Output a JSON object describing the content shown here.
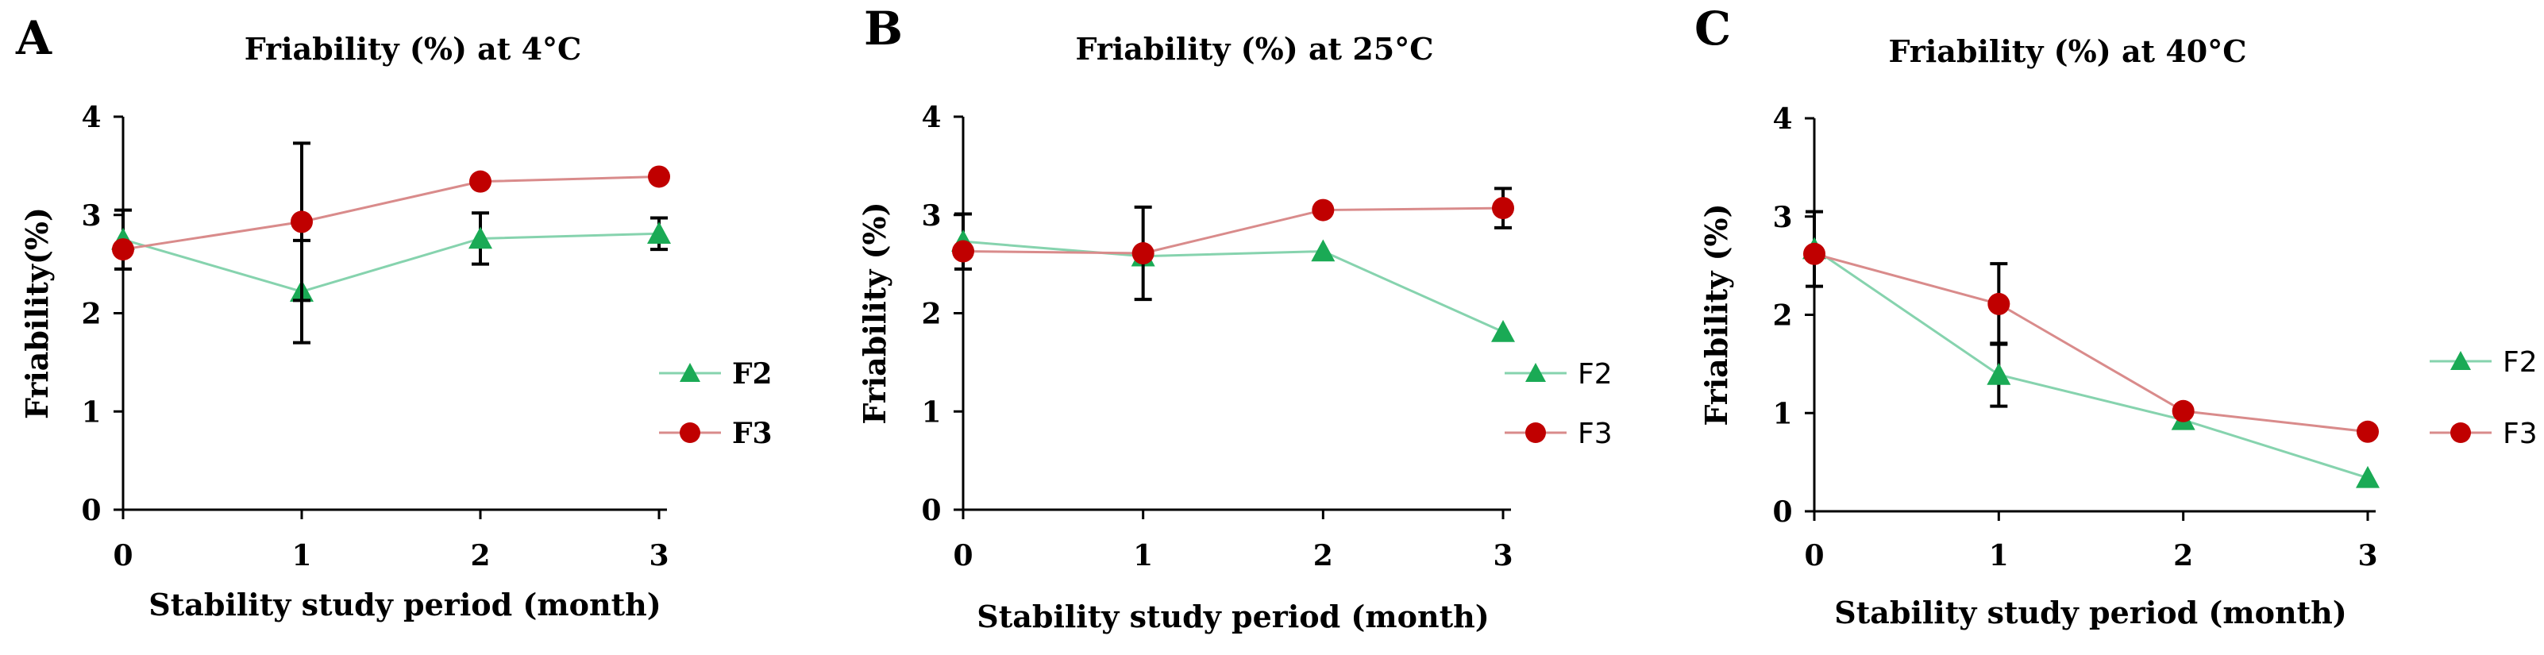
{
  "chart_data": [
    {
      "type": "line",
      "panel": "A",
      "title": "Friability (%) at 4°C",
      "xlabel": "Stability study period (month)",
      "ylabel": "Friability(%)",
      "x": [
        0,
        1,
        2,
        3
      ],
      "xticks": [
        "0",
        "1",
        "2",
        "3"
      ],
      "yticks": [
        "0",
        "1",
        "2",
        "3",
        "4"
      ],
      "ylim": [
        0,
        4
      ],
      "legend": "right",
      "grid": false,
      "series": [
        {
          "name": "F2",
          "marker": "triangle",
          "color": "#1aaa55",
          "line_color": "#86d3ae",
          "values": [
            2.75,
            2.22,
            2.76,
            2.81
          ],
          "errors": [
            0.3,
            0.52,
            0.26,
            0.16
          ]
        },
        {
          "name": "F3",
          "marker": "circle",
          "color": "#c00000",
          "line_color": "#d98b8b",
          "values": [
            2.65,
            2.93,
            3.34,
            3.39
          ],
          "errors": [
            0,
            0.8,
            0,
            0
          ]
        }
      ]
    },
    {
      "type": "line",
      "panel": "B",
      "title": "Friability (%) at 25°C",
      "xlabel": "Stability study period (month)",
      "ylabel": "Friability (%)",
      "x": [
        0,
        1,
        2,
        3
      ],
      "xticks": [
        "0",
        "1",
        "2",
        "3"
      ],
      "yticks": [
        "0",
        "1",
        "2",
        "3",
        "4"
      ],
      "ylim": [
        0,
        4
      ],
      "legend": "right",
      "grid": false,
      "series": [
        {
          "name": "F2",
          "marker": "triangle",
          "color": "#1aaa55",
          "line_color": "#86d3ae",
          "values": [
            2.73,
            2.58,
            2.63,
            1.81
          ],
          "errors": [
            0.28,
            0,
            0,
            0
          ]
        },
        {
          "name": "F3",
          "marker": "circle",
          "color": "#c00000",
          "line_color": "#d98b8b",
          "values": [
            2.63,
            2.61,
            3.05,
            3.07
          ],
          "errors": [
            0,
            0.47,
            0,
            0.2
          ]
        }
      ]
    },
    {
      "type": "line",
      "panel": "C",
      "title": "Friability (%) at 40°C",
      "xlabel": "Stability study period (month)",
      "ylabel": "Friability (%)",
      "x": [
        0,
        1,
        2,
        3
      ],
      "xticks": [
        "0",
        "1",
        "2",
        "3"
      ],
      "yticks": [
        "0",
        "1",
        "2",
        "3",
        "4"
      ],
      "ylim": [
        0,
        4
      ],
      "legend": "right",
      "grid": false,
      "series": [
        {
          "name": "F2",
          "marker": "triangle",
          "color": "#1aaa55",
          "line_color": "#86d3ae",
          "values": [
            2.67,
            1.39,
            0.93,
            0.34
          ],
          "errors": [
            0.38,
            0.32,
            0,
            0
          ]
        },
        {
          "name": "F3",
          "marker": "circle",
          "color": "#c00000",
          "line_color": "#d98b8b",
          "values": [
            2.62,
            2.11,
            1.02,
            0.81
          ],
          "errors": [
            0,
            0.41,
            0,
            0
          ]
        }
      ]
    }
  ]
}
